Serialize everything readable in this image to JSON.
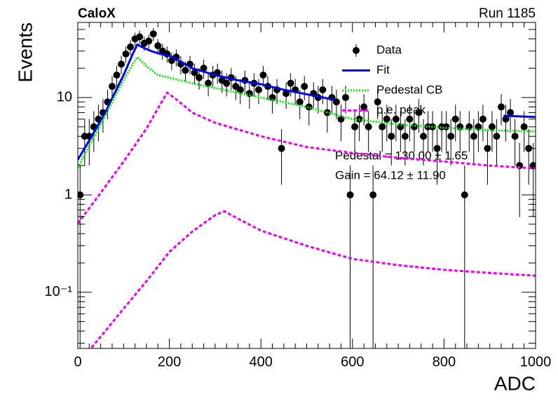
{
  "chart_data": {
    "type": "scatter",
    "title": "CaloX",
    "subtitle": "Run 1185",
    "x_label": "ADC",
    "y_label": "Events",
    "log_y": true,
    "xlim": [
      0,
      1000
    ],
    "ylim": [
      0.0265,
      59
    ],
    "xticks": [
      0,
      200,
      400,
      600,
      800,
      1000
    ],
    "xminor_ticks": [
      25,
      50,
      75,
      100,
      125,
      150,
      175,
      225,
      250,
      275,
      300,
      325,
      350,
      375,
      425,
      450,
      475,
      500,
      525,
      550,
      575,
      625,
      650,
      675,
      700,
      725,
      750,
      775,
      825,
      850,
      875,
      900,
      925,
      950,
      975
    ],
    "yticks": [
      {
        "value": 0.1,
        "label": "10⁻¹"
      },
      1,
      10
    ],
    "yminor_ticks": [
      0.03,
      0.04,
      0.05,
      0.06,
      0.07,
      0.08,
      0.09,
      0.2,
      0.3,
      0.4,
      0.5,
      0.6,
      0.7,
      0.8,
      0.9,
      2,
      3,
      4,
      5,
      6,
      7,
      8,
      9,
      20,
      30,
      40,
      50
    ],
    "annotations": [
      "Pedestal = 130.00 ± 1.65",
      "Gain = 64.12 ± 11.90"
    ],
    "series": [
      {
        "name": "Data",
        "color": "#000000",
        "style": "points",
        "x": [
          5,
          15,
          25,
          35,
          45,
          55,
          65,
          75,
          85,
          95,
          105,
          115,
          125,
          135,
          145,
          155,
          165,
          175,
          185,
          195,
          205,
          215,
          225,
          235,
          245,
          255,
          265,
          275,
          285,
          295,
          305,
          315,
          325,
          335,
          345,
          355,
          365,
          375,
          385,
          395,
          405,
          415,
          425,
          435,
          445,
          455,
          465,
          475,
          485,
          495,
          505,
          515,
          525,
          535,
          545,
          555,
          565,
          575,
          585,
          595,
          605,
          615,
          625,
          635,
          645,
          655,
          665,
          675,
          685,
          695,
          705,
          715,
          725,
          735,
          745,
          755,
          765,
          775,
          785,
          795,
          805,
          815,
          825,
          835,
          845,
          855,
          865,
          875,
          885,
          895,
          905,
          915,
          925,
          935,
          945,
          955,
          965,
          975,
          985,
          995
        ],
        "values": [
          1,
          4,
          4,
          5,
          6,
          7,
          9,
          13,
          17,
          22,
          28,
          33,
          40,
          42,
          36,
          38,
          45,
          34,
          30,
          28,
          24,
          26,
          22,
          19,
          22,
          18,
          16,
          20,
          14,
          17,
          18,
          15,
          14,
          16,
          13,
          12,
          15,
          11,
          14,
          12,
          17,
          13,
          10,
          12,
          3,
          11,
          14,
          12,
          9,
          13,
          8,
          11,
          10,
          12,
          7,
          10,
          9,
          6,
          10,
          1,
          5,
          6,
          8,
          5,
          1,
          9,
          5,
          6,
          4,
          6,
          5,
          4,
          6,
          5,
          7,
          4,
          5,
          5,
          3,
          5,
          5,
          4,
          6,
          5,
          1,
          5,
          4,
          5,
          6,
          3,
          5,
          4,
          8,
          6,
          7,
          4,
          2,
          5,
          3,
          2
        ],
        "errors": [
          1,
          2,
          2,
          2.24,
          2.45,
          2.65,
          3,
          3.61,
          4.12,
          4.69,
          5.29,
          5.74,
          6.32,
          6.48,
          6,
          6.16,
          6.71,
          5.83,
          5.48,
          5.29,
          4.9,
          5.1,
          4.69,
          4.36,
          4.69,
          4.24,
          4,
          4.47,
          3.74,
          4.12,
          4.24,
          3.87,
          3.74,
          4,
          3.61,
          3.46,
          3.87,
          3.32,
          3.74,
          3.46,
          4.12,
          3.61,
          3.16,
          3.46,
          1.73,
          3.32,
          3.74,
          3.46,
          3,
          3.61,
          2.83,
          3.32,
          3.16,
          3.46,
          2.65,
          3.16,
          3,
          2.45,
          3.16,
          1,
          2.24,
          2.45,
          2.83,
          2.24,
          1,
          3,
          2.24,
          2.45,
          2,
          2.45,
          2.24,
          2,
          2.45,
          2.24,
          2.65,
          2,
          2.24,
          2.24,
          1.73,
          2.24,
          2.24,
          2,
          2.45,
          2.24,
          1,
          2.24,
          2,
          2.24,
          2.45,
          1.73,
          2.24,
          2,
          2.83,
          2.45,
          2.65,
          2,
          1.41,
          2.24,
          1.73,
          1.41
        ]
      },
      {
        "name": "Fit",
        "color": "#0000ee",
        "style": "solid",
        "x": [
          0,
          20,
          40,
          60,
          80,
          100,
          120,
          130,
          140,
          160,
          180,
          200,
          220,
          250,
          300,
          350,
          400,
          450,
          500,
          560,
          745,
          930,
          1000
        ],
        "values": [
          2.3,
          3.3,
          4.8,
          7,
          11,
          17,
          28,
          35,
          33,
          30,
          28,
          27,
          24,
          20,
          17,
          15,
          13.7,
          12,
          10.8,
          9.5,
          null,
          6.5,
          6.3
        ]
      },
      {
        "name": "Pedestal CB",
        "color": "#00ee00",
        "style": "dotted",
        "x": [
          0,
          20,
          40,
          60,
          80,
          100,
          120,
          130,
          150,
          175,
          200,
          250,
          300,
          400,
          500,
          600,
          700,
          800,
          900,
          1000
        ],
        "values": [
          1.9,
          2.9,
          4.3,
          6.5,
          10,
          15,
          22,
          26,
          21,
          17,
          16,
          14,
          12.5,
          10,
          8,
          6,
          5.3,
          4.9,
          4.6,
          4.5
        ]
      },
      {
        "name": "p.e. peak",
        "color": "#ee00ee",
        "style": "dashed",
        "x": [
          0,
          50,
          100,
          150,
          180,
          195,
          210,
          250,
          300,
          400,
          500,
          600,
          700,
          800,
          900,
          1000
        ],
        "values": [
          0.51,
          1.05,
          2.2,
          4.8,
          8.5,
          11.2,
          10,
          7,
          5.5,
          4,
          3.1,
          2.7,
          2.4,
          2.2,
          2,
          1.87
        ]
      },
      {
        "color": "#ee00ee",
        "style": "dashed",
        "x": [
          30,
          60,
          100,
          150,
          200,
          250,
          300,
          320,
          350,
          400,
          500,
          600,
          700,
          800,
          900,
          1000
        ],
        "values": [
          0.027,
          0.04,
          0.068,
          0.13,
          0.26,
          0.42,
          0.62,
          0.68,
          0.57,
          0.43,
          0.3,
          0.22,
          0.19,
          0.17,
          0.158,
          0.148
        ]
      }
    ]
  }
}
